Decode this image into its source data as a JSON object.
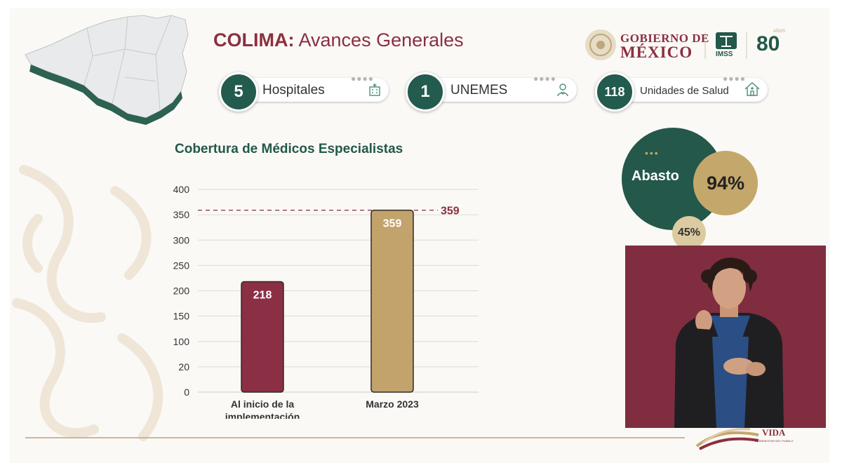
{
  "header": {
    "title_strong": "COLIMA:",
    "title_rest": "Avances Generales",
    "gob_line1": "GOBIERNO DE",
    "gob_line2": "MÉXICO",
    "imss": "IMSS",
    "anniv": "80",
    "anniv_small": "AÑOS"
  },
  "stats": [
    {
      "value": "5",
      "label": "Hospitales",
      "icon": "hospital-icon"
    },
    {
      "value": "1",
      "label": "UNEMES",
      "icon": "doctor-icon"
    },
    {
      "value": "118",
      "label": "Unidades de Salud",
      "icon": "house-icon"
    }
  ],
  "abasto": {
    "label": "Abasto",
    "dots": "•••",
    "value": "94%",
    "secondary": "45%"
  },
  "footer": {
    "vida": "VIDA",
    "vida_sub": "EL BIENESTAR DEL PUEBLO"
  },
  "chart_data": {
    "type": "bar",
    "title": "Cobertura de Médicos Especialistas",
    "categories": [
      "Al inicio de la implementación",
      "Marzo 2023"
    ],
    "category_lines": [
      [
        "Al inicio de la",
        "implementación"
      ],
      [
        "Marzo 2023"
      ]
    ],
    "values": [
      218,
      359
    ],
    "data_labels": [
      "218",
      "359"
    ],
    "bar_colors": [
      "#8b2f45",
      "#c2a36b"
    ],
    "yticks": [
      "400",
      "350",
      "300",
      "250",
      "200",
      "150",
      "100",
      "20",
      "0"
    ],
    "ylim": [
      0,
      400
    ],
    "reference_line": {
      "value": 359,
      "label": "359",
      "color": "#8b2f3f"
    },
    "grid": true
  }
}
